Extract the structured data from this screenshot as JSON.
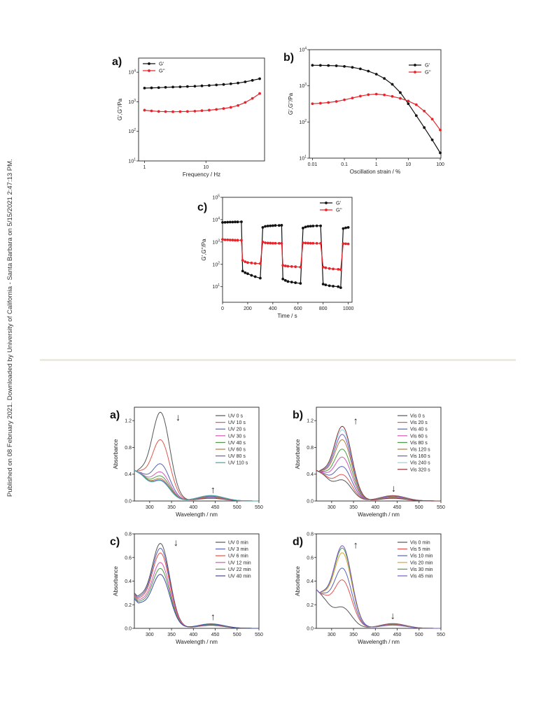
{
  "side_note": "Published on 08 February 2021. Downloaded by University of California - Santa Barbara on 5/15/2021 2:47:13 PM.",
  "colors": {
    "g1": "#111111",
    "g2": "#e8242b",
    "axis": "#222222"
  },
  "chart_data": [
    {
      "id": "rheo_a",
      "panel": "a)",
      "type": "line",
      "xlabel": "Frequency / Hz",
      "ylabel": "G',G''/Pa",
      "xscale": "log",
      "yscale": "log",
      "xlim": [
        0.8,
        90
      ],
      "ylim": [
        10,
        30000
      ],
      "xticks": [
        1,
        10
      ],
      "xtick_labels": [
        "1",
        "10"
      ],
      "yticks": [
        10,
        100,
        1000,
        10000
      ],
      "ytick_labels": [
        "10^1",
        "10^2",
        "10^3",
        "10^4"
      ],
      "legend_position": "top-left",
      "series": [
        {
          "name": "G'",
          "color": "#111111",
          "x": [
            1,
            1.3,
            1.7,
            2.2,
            2.9,
            3.8,
            5,
            6.6,
            8.6,
            11.3,
            14.8,
            19.4,
            25.4,
            33.3,
            43.6,
            57.1,
            75
          ],
          "y": [
            2900,
            2950,
            3000,
            3080,
            3150,
            3200,
            3280,
            3350,
            3450,
            3550,
            3700,
            3850,
            4050,
            4300,
            4700,
            5300,
            6000
          ]
        },
        {
          "name": "G''",
          "color": "#e8242b",
          "x": [
            1,
            1.3,
            1.7,
            2.2,
            2.9,
            3.8,
            5,
            6.6,
            8.6,
            11.3,
            14.8,
            19.4,
            25.4,
            33.3,
            43.6,
            57.1,
            75
          ],
          "y": [
            520,
            490,
            470,
            465,
            460,
            465,
            470,
            480,
            500,
            520,
            550,
            590,
            650,
            750,
            950,
            1300,
            1900
          ]
        }
      ]
    },
    {
      "id": "rheo_b",
      "panel": "b)",
      "type": "line",
      "xlabel": "Oscillation strain / %",
      "ylabel": "G',G''/Pa",
      "xscale": "log",
      "yscale": "log",
      "xlim": [
        0.008,
        105
      ],
      "ylim": [
        10,
        10000
      ],
      "xticks": [
        0.01,
        0.1,
        1,
        10,
        100
      ],
      "xtick_labels": [
        "0.01",
        "0.1",
        "1",
        "10",
        "100"
      ],
      "yticks": [
        10,
        100,
        1000,
        10000
      ],
      "ytick_labels": [
        "10^1",
        "10^2",
        "10^3",
        "10^4"
      ],
      "legend_position": "top-right",
      "series": [
        {
          "name": "G'",
          "color": "#111111",
          "x": [
            0.01,
            0.0178,
            0.0316,
            0.0562,
            0.1,
            0.178,
            0.316,
            0.562,
            1,
            1.78,
            3.16,
            5.62,
            10,
            17.8,
            31.6,
            56.2,
            100
          ],
          "y": [
            3700,
            3680,
            3650,
            3580,
            3450,
            3250,
            2950,
            2550,
            2100,
            1600,
            1100,
            650,
            320,
            150,
            70,
            32,
            14
          ]
        },
        {
          "name": "G''",
          "color": "#e8242b",
          "x": [
            0.01,
            0.0178,
            0.0316,
            0.0562,
            0.1,
            0.178,
            0.316,
            0.562,
            1,
            1.78,
            3.16,
            5.62,
            10,
            17.8,
            31.6,
            56.2,
            100
          ],
          "y": [
            320,
            330,
            345,
            370,
            410,
            460,
            520,
            570,
            590,
            560,
            510,
            450,
            380,
            300,
            200,
            120,
            60
          ]
        }
      ]
    },
    {
      "id": "rheo_c",
      "panel": "c)",
      "type": "line",
      "xlabel": "Time / s",
      "ylabel": "G',G''/Pa",
      "xscale": "linear",
      "yscale": "log",
      "xlim": [
        0,
        1030
      ],
      "ylim": [
        2,
        100000
      ],
      "xticks": [
        0,
        200,
        400,
        600,
        800,
        1000
      ],
      "xtick_labels": [
        "0",
        "200",
        "400",
        "600",
        "800",
        "1000"
      ],
      "yticks": [
        10,
        100,
        1000,
        10000,
        100000
      ],
      "ytick_labels": [
        "10^1",
        "10^2",
        "10^3",
        "10^4",
        "10^5"
      ],
      "legend_position": "top-right",
      "series": [
        {
          "name": "G'",
          "color": "#111111",
          "x": [
            0,
            20,
            40,
            60,
            80,
            100,
            120,
            150,
            160,
            180,
            200,
            230,
            260,
            300,
            320,
            340,
            360,
            380,
            400,
            420,
            450,
            470,
            480,
            500,
            520,
            550,
            580,
            620,
            640,
            660,
            680,
            700,
            720,
            750,
            780,
            800,
            820,
            850,
            880,
            920,
            940,
            960,
            980,
            1000
          ],
          "y": [
            7500,
            7600,
            7700,
            7800,
            7800,
            7900,
            7900,
            8000,
            50,
            42,
            38,
            32,
            28,
            24,
            4500,
            5000,
            5200,
            5300,
            5400,
            5500,
            5500,
            5600,
            22,
            19,
            17,
            16,
            15,
            14,
            4200,
            4700,
            5000,
            5100,
            5200,
            5300,
            5300,
            13,
            12,
            11,
            10.5,
            10,
            9,
            4000,
            4300,
            4500
          ]
        },
        {
          "name": "G''",
          "color": "#e8242b",
          "x": [
            0,
            20,
            40,
            60,
            80,
            100,
            120,
            150,
            160,
            180,
            200,
            230,
            260,
            300,
            320,
            340,
            360,
            380,
            400,
            420,
            450,
            470,
            480,
            500,
            520,
            550,
            580,
            620,
            640,
            660,
            680,
            700,
            720,
            750,
            780,
            800,
            820,
            850,
            880,
            920,
            940,
            960,
            980,
            1000
          ],
          "y": [
            1300,
            1250,
            1250,
            1230,
            1220,
            1200,
            1200,
            1200,
            150,
            130,
            120,
            115,
            110,
            108,
            1000,
            920,
            900,
            890,
            880,
            880,
            870,
            870,
            90,
            85,
            82,
            80,
            78,
            75,
            920,
            900,
            890,
            880,
            880,
            870,
            870,
            75,
            70,
            65,
            62,
            60,
            58,
            850,
            830,
            820
          ]
        }
      ]
    },
    {
      "id": "abs_a",
      "panel": "a)",
      "type": "line",
      "xlabel": "Wavelength / nm",
      "ylabel": "Absorbance",
      "xlim": [
        265,
        550
      ],
      "ylim": [
        0,
        1.4
      ],
      "xticks": [
        300,
        350,
        400,
        450,
        500,
        550
      ],
      "yticks": [
        0.0,
        0.4,
        0.8,
        1.2
      ],
      "ytick_labels": [
        "0.0",
        "0.4",
        "0.8",
        "1.2"
      ],
      "legend_position": "top-right",
      "annotations": [
        {
          "glyph": "↓",
          "x": 365,
          "y": 1.2
        },
        {
          "glyph": "↑",
          "x": 445,
          "y": 0.12
        }
      ],
      "series": [
        {
          "name": "UV 0 s",
          "color": "#555555",
          "peak": 1.31,
          "iso": 0.4,
          "vis": 0.04
        },
        {
          "name": "UV 10 s",
          "color": "#e2554e",
          "peak": 0.9,
          "iso": 0.4,
          "vis": 0.05
        },
        {
          "name": "UV 20 s",
          "color": "#5962b5",
          "peak": 0.54,
          "iso": 0.4,
          "vis": 0.06
        },
        {
          "name": "UV 30 s",
          "color": "#d357b7",
          "peak": 0.42,
          "iso": 0.4,
          "vis": 0.065
        },
        {
          "name": "UV 40 s",
          "color": "#4e9a48",
          "peak": 0.36,
          "iso": 0.4,
          "vis": 0.07
        },
        {
          "name": "UV 60 s",
          "color": "#b27a3a",
          "peak": 0.32,
          "iso": 0.4,
          "vis": 0.075
        },
        {
          "name": "UV 80 s",
          "color": "#7b59c2",
          "peak": 0.3,
          "iso": 0.4,
          "vis": 0.08
        },
        {
          "name": "UV 110 s",
          "color": "#3fa7a6",
          "peak": 0.29,
          "iso": 0.4,
          "vis": 0.082
        }
      ]
    },
    {
      "id": "abs_b",
      "panel": "b)",
      "type": "line",
      "xlabel": "Wavelength / nm",
      "ylabel": "Absorbance",
      "xlim": [
        265,
        550
      ],
      "ylim": [
        0,
        1.4
      ],
      "xticks": [
        300,
        350,
        400,
        450,
        500,
        550
      ],
      "yticks": [
        0.0,
        0.4,
        0.8,
        1.2
      ],
      "ytick_labels": [
        "0.0",
        "0.4",
        "0.8",
        "1.2"
      ],
      "legend_position": "top-right",
      "annotations": [
        {
          "glyph": "↑",
          "x": 355,
          "y": 1.15
        },
        {
          "glyph": "↓",
          "x": 442,
          "y": 0.14
        }
      ],
      "series": [
        {
          "name": "Vis 0 s",
          "color": "#555555",
          "peak": 0.3,
          "iso": 0.4,
          "vis": 0.08
        },
        {
          "name": "Vis 20 s",
          "color": "#e2554e",
          "peak": 0.38,
          "iso": 0.4,
          "vis": 0.075
        },
        {
          "name": "Vis 40 s",
          "color": "#5962b5",
          "peak": 0.5,
          "iso": 0.4,
          "vis": 0.07
        },
        {
          "name": "Vis 60 s",
          "color": "#d357b7",
          "peak": 0.64,
          "iso": 0.4,
          "vis": 0.06
        },
        {
          "name": "Vis 80 s",
          "color": "#4e9a48",
          "peak": 0.76,
          "iso": 0.4,
          "vis": 0.055
        },
        {
          "name": "Vis 120 s",
          "color": "#b27a3a",
          "peak": 0.9,
          "iso": 0.4,
          "vis": 0.05
        },
        {
          "name": "Vis 160 s",
          "color": "#7b59c2",
          "peak": 0.98,
          "iso": 0.4,
          "vis": 0.045
        },
        {
          "name": "Vis 240 s",
          "color": "#8fd3e6",
          "peak": 1.05,
          "iso": 0.4,
          "vis": 0.042
        },
        {
          "name": "Vis 320 s",
          "color": "#8a2f2f",
          "peak": 1.1,
          "iso": 0.4,
          "vis": 0.04
        }
      ]
    },
    {
      "id": "abs_c",
      "panel": "c)",
      "type": "line",
      "xlabel": "Wavelength / nm",
      "ylabel": "Absorbance",
      "xlim": [
        265,
        550
      ],
      "ylim": [
        0,
        0.8
      ],
      "xticks": [
        300,
        350,
        400,
        450,
        500,
        550
      ],
      "yticks": [
        0.0,
        0.2,
        0.4,
        0.6,
        0.8
      ],
      "ytick_labels": [
        "0.0",
        "0.2",
        "0.4",
        "0.6",
        "0.8"
      ],
      "legend_position": "top-right",
      "annotations": [
        {
          "glyph": "↓",
          "x": 360,
          "y": 0.7
        },
        {
          "glyph": "↑",
          "x": 445,
          "y": 0.07
        }
      ],
      "series": [
        {
          "name": "UV 0 min",
          "color": "#555555",
          "peak": 0.71,
          "iso": 0.24,
          "vis": 0.025
        },
        {
          "name": "UV 3 min",
          "color": "#5962b5",
          "peak": 0.67,
          "iso": 0.23,
          "vis": 0.028
        },
        {
          "name": "UV 6 min",
          "color": "#e2554e",
          "peak": 0.63,
          "iso": 0.22,
          "vis": 0.03
        },
        {
          "name": "UV 12 min",
          "color": "#d357b7",
          "peak": 0.55,
          "iso": 0.21,
          "vis": 0.033
        },
        {
          "name": "UV 22 min",
          "color": "#4e9a48",
          "peak": 0.5,
          "iso": 0.2,
          "vis": 0.035
        },
        {
          "name": "UV 40 min",
          "color": "#3e4aa0",
          "peak": 0.45,
          "iso": 0.19,
          "vis": 0.038
        }
      ]
    },
    {
      "id": "abs_d",
      "panel": "d)",
      "type": "line",
      "xlabel": "Wavelength / nm",
      "ylabel": "Absorbance",
      "xlim": [
        265,
        550
      ],
      "ylim": [
        0,
        0.8
      ],
      "xticks": [
        300,
        350,
        400,
        450,
        500,
        550
      ],
      "yticks": [
        0.0,
        0.2,
        0.4,
        0.6,
        0.8
      ],
      "ytick_labels": [
        "0.0",
        "0.2",
        "0.4",
        "0.6",
        "0.8"
      ],
      "legend_position": "top-right",
      "annotations": [
        {
          "glyph": "↑",
          "x": 355,
          "y": 0.68
        },
        {
          "glyph": "↓",
          "x": 440,
          "y": 0.08
        }
      ],
      "series": [
        {
          "name": "Vis 0 min",
          "color": "#555555",
          "peak": 0.17,
          "iso": 0.27,
          "vis": 0.04
        },
        {
          "name": "Vis 5 min",
          "color": "#e2554e",
          "peak": 0.4,
          "iso": 0.27,
          "vis": 0.035
        },
        {
          "name": "Vis 10 min",
          "color": "#5962b5",
          "peak": 0.5,
          "iso": 0.27,
          "vis": 0.032
        },
        {
          "name": "Vis 20 min",
          "color": "#e0a13a",
          "peak": 0.63,
          "iso": 0.27,
          "vis": 0.03
        },
        {
          "name": "Vis 30 min",
          "color": "#4e9a48",
          "peak": 0.67,
          "iso": 0.27,
          "vis": 0.028
        },
        {
          "name": "Vis 45 min",
          "color": "#7b59c2",
          "peak": 0.69,
          "iso": 0.27,
          "vis": 0.027
        }
      ]
    }
  ]
}
